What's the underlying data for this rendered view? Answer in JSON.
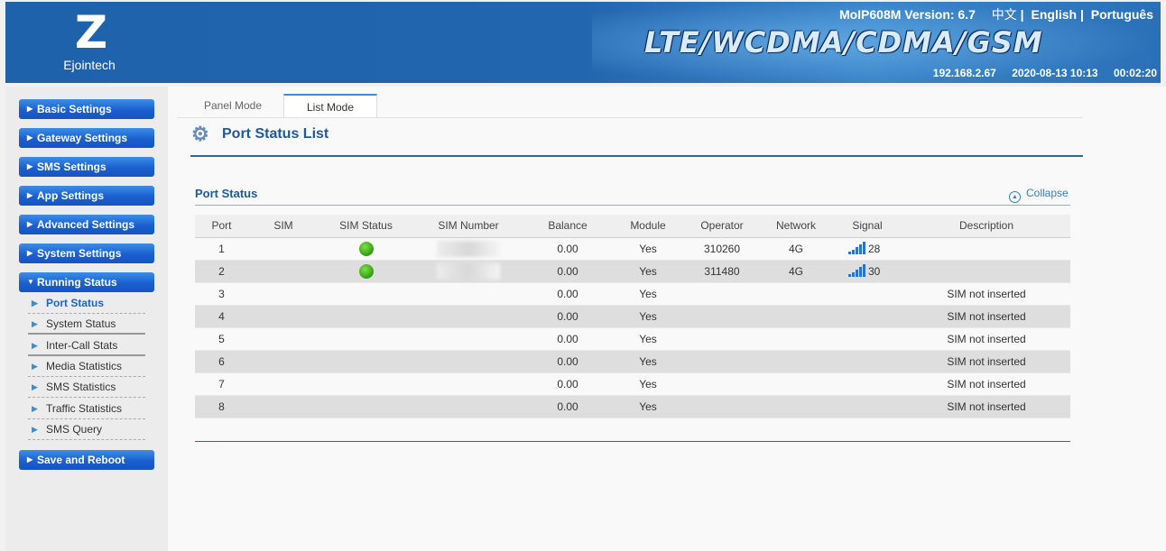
{
  "header": {
    "brand": "Ejointech",
    "logo_mark": "Z",
    "version": "MoIP608M Version: 6.7",
    "languages": [
      "中文",
      "English",
      "Português"
    ],
    "tech": "LTE/WCDMA/CDMA/GSM",
    "ip": "192.168.2.67",
    "datetime": "2020-08-13 10:13",
    "uptime": "00:02:20"
  },
  "sidebar": {
    "menus": [
      "Basic Settings",
      "Gateway Settings",
      "SMS Settings",
      "App Settings",
      "Advanced Settings",
      "System Settings",
      "Running Status"
    ],
    "submenu": [
      "Port Status",
      "System Status",
      "Inter-Call Stats",
      "Media Statistics",
      "SMS Statistics",
      "Traffic Statistics",
      "SMS Query"
    ],
    "save": "Save and Reboot"
  },
  "main": {
    "tabs": [
      "Panel Mode",
      "List Mode"
    ],
    "active_tab": "List Mode",
    "title": "Port Status List",
    "section": "Port Status",
    "collapse": "Collapse",
    "columns": [
      "Port",
      "SIM",
      "SIM Status",
      "SIM Number",
      "Balance",
      "Module",
      "Operator",
      "Network",
      "Signal",
      "Description"
    ],
    "rows": [
      {
        "port": "1",
        "sim": "",
        "sim_ok": true,
        "number": "",
        "balance": "0.00",
        "module": "Yes",
        "operator": "310260",
        "network": "4G",
        "signal": "28",
        "desc": ""
      },
      {
        "port": "2",
        "sim": "",
        "sim_ok": true,
        "number": "",
        "balance": "0.00",
        "module": "Yes",
        "operator": "311480",
        "network": "4G",
        "signal": "30",
        "desc": ""
      },
      {
        "port": "3",
        "sim": "",
        "sim_ok": false,
        "number": "",
        "balance": "0.00",
        "module": "Yes",
        "operator": "",
        "network": "",
        "signal": "",
        "desc": "SIM not inserted"
      },
      {
        "port": "4",
        "sim": "",
        "sim_ok": false,
        "number": "",
        "balance": "0.00",
        "module": "Yes",
        "operator": "",
        "network": "",
        "signal": "",
        "desc": "SIM not inserted"
      },
      {
        "port": "5",
        "sim": "",
        "sim_ok": false,
        "number": "",
        "balance": "0.00",
        "module": "Yes",
        "operator": "",
        "network": "",
        "signal": "",
        "desc": "SIM not inserted"
      },
      {
        "port": "6",
        "sim": "",
        "sim_ok": false,
        "number": "",
        "balance": "0.00",
        "module": "Yes",
        "operator": "",
        "network": "",
        "signal": "",
        "desc": "SIM not inserted"
      },
      {
        "port": "7",
        "sim": "",
        "sim_ok": false,
        "number": "",
        "balance": "0.00",
        "module": "Yes",
        "operator": "",
        "network": "",
        "signal": "",
        "desc": "SIM not inserted"
      },
      {
        "port": "8",
        "sim": "",
        "sim_ok": false,
        "number": "",
        "balance": "0.00",
        "module": "Yes",
        "operator": "",
        "network": "",
        "signal": "",
        "desc": "SIM not inserted"
      }
    ]
  },
  "colors": {
    "accent": "#1d62ab",
    "button": "#1a5fcf",
    "sim_ok": "#3fae1a"
  }
}
